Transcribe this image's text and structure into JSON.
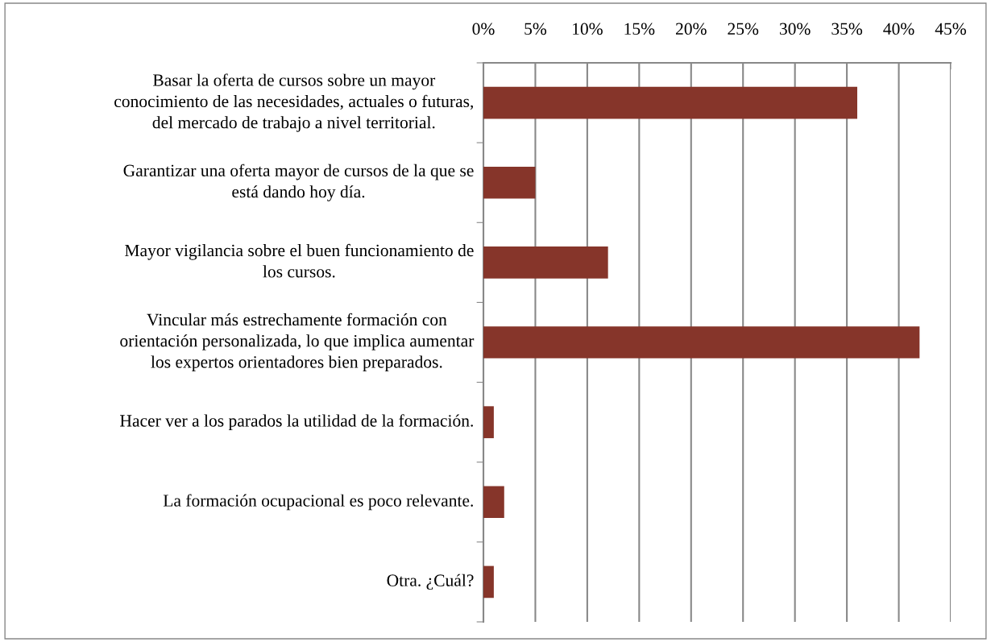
{
  "chart_data": {
    "type": "bar",
    "orientation": "horizontal",
    "categories": [
      "Basar la oferta de cursos sobre un mayor\nconocimiento de las necesidades, actuales o futuras,\ndel mercado de trabajo a nivel territorial.",
      "Garantizar una oferta mayor de cursos de la que se\nestá dando hoy día.",
      "Mayor vigilancia sobre el buen funcionamiento de\nlos cursos.",
      "Vincular más estrechamente formación con\norientación personalizada, lo que implica aumentar\nlos expertos orientadores bien preparados.",
      "Hacer ver a los parados la utilidad de la formación.",
      "La formación ocupacional es poco relevante.",
      "Otra. ¿Cuál?"
    ],
    "values": [
      36,
      5,
      12,
      42,
      1,
      2,
      1
    ],
    "color": "#86352a",
    "xlim": [
      0,
      45
    ],
    "xticks": [
      {
        "value": 0,
        "label": "0%"
      },
      {
        "value": 5,
        "label": "5%"
      },
      {
        "value": 10,
        "label": "10%"
      },
      {
        "value": 15,
        "label": "15%"
      },
      {
        "value": 20,
        "label": "20%"
      },
      {
        "value": 25,
        "label": "25%"
      },
      {
        "value": 30,
        "label": "30%"
      },
      {
        "value": 35,
        "label": "35%"
      },
      {
        "value": 40,
        "label": "40%"
      },
      {
        "value": 45,
        "label": "45%"
      }
    ],
    "grid": "x",
    "legend": false
  }
}
